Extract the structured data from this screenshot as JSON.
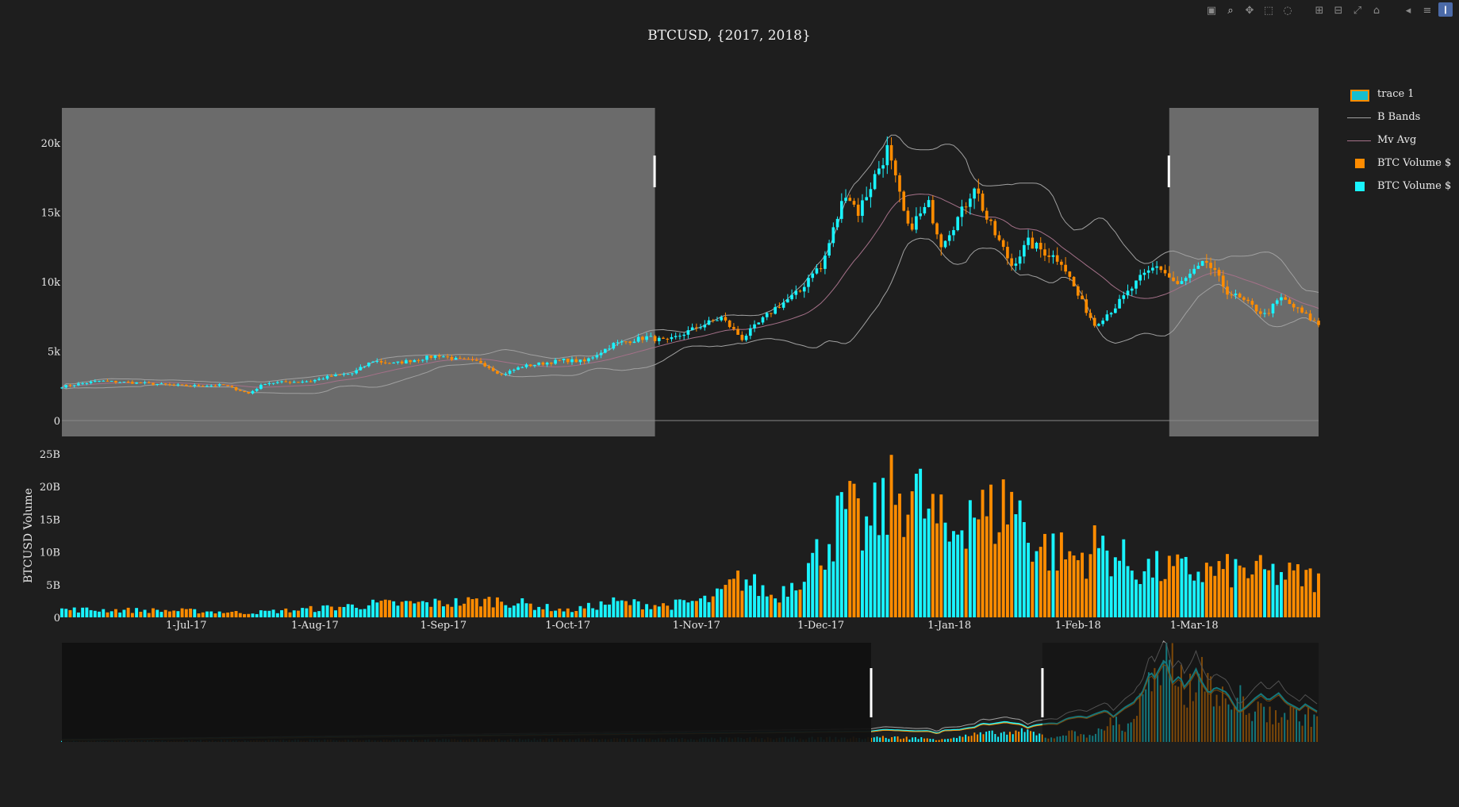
{
  "title": "BTCUSD, {2017, 2018}",
  "modebar": {
    "icons": [
      "camera-icon",
      "zoom-icon",
      "pan-icon",
      "box-select-icon",
      "lasso-icon",
      "zoom-in-icon",
      "zoom-out-icon",
      "autoscale-icon",
      "reset-axes-icon",
      "spike-lines-icon",
      "compare-hover-icon",
      "plotly-logo-icon"
    ]
  },
  "legend": {
    "items": [
      {
        "label": "trace 1",
        "kind": "candle"
      },
      {
        "label": "B Bands",
        "kind": "line-gray"
      },
      {
        "label": "Mv Avg",
        "kind": "line-pink"
      },
      {
        "label": "BTC Volume $",
        "kind": "square-orange"
      },
      {
        "label": "BTC Volume $",
        "kind": "square-cyan"
      }
    ]
  },
  "colors": {
    "background": "#1e1e1e",
    "increasing": "#17becf",
    "increasing_fill": "#19f4ff",
    "decreasing": "#ff8c00",
    "bands": "#a0a0a0",
    "moving_average": "#a57189",
    "shade": "#6b6b6b",
    "rangeslider_shade": "#111111"
  },
  "chart_data": [
    {
      "type": "candlestick",
      "name": "trace 1",
      "y_ticks": [
        "0",
        "5k",
        "10k",
        "15k",
        "20k"
      ],
      "y_tick_values": [
        0,
        5000,
        10000,
        15000,
        20000
      ],
      "ylim": [
        0,
        22500
      ],
      "x_start": "2017-06-01",
      "x_end": "2018-03-31",
      "shaded_ranges": [
        [
          "2017-06-01",
          "2017-10-22"
        ],
        [
          "2018-02-23",
          "2018-03-31"
        ]
      ],
      "close_anchors": [
        [
          "2017-06-01",
          2450
        ],
        [
          "2017-06-10",
          2850
        ],
        [
          "2017-06-20",
          2700
        ],
        [
          "2017-07-01",
          2500
        ],
        [
          "2017-07-10",
          2550
        ],
        [
          "2017-07-16",
          1950
        ],
        [
          "2017-07-20",
          2700
        ],
        [
          "2017-07-31",
          2850
        ],
        [
          "2017-08-05",
          3200
        ],
        [
          "2017-08-10",
          3400
        ],
        [
          "2017-08-15",
          4300
        ],
        [
          "2017-08-20",
          4100
        ],
        [
          "2017-08-31",
          4700
        ],
        [
          "2017-09-04",
          4400
        ],
        [
          "2017-09-10",
          4200
        ],
        [
          "2017-09-15",
          3300
        ],
        [
          "2017-09-20",
          3900
        ],
        [
          "2017-09-30",
          4350
        ],
        [
          "2017-10-05",
          4250
        ],
        [
          "2017-10-12",
          5500
        ],
        [
          "2017-10-20",
          6000
        ],
        [
          "2017-10-25",
          5700
        ],
        [
          "2017-11-01",
          6700
        ],
        [
          "2017-11-07",
          7400
        ],
        [
          "2017-11-12",
          5900
        ],
        [
          "2017-11-20",
          8100
        ],
        [
          "2017-11-26",
          9300
        ],
        [
          "2017-11-29",
          10800
        ],
        [
          "2017-12-01",
          10900
        ],
        [
          "2017-12-07",
          16500
        ],
        [
          "2017-12-10",
          15000
        ],
        [
          "2017-12-17",
          19500
        ],
        [
          "2017-12-22",
          13800
        ],
        [
          "2017-12-27",
          15500
        ],
        [
          "2017-12-30",
          12800
        ],
        [
          "2018-01-04",
          15000
        ],
        [
          "2018-01-07",
          17000
        ],
        [
          "2018-01-10",
          14500
        ],
        [
          "2018-01-16",
          11200
        ],
        [
          "2018-01-20",
          12800
        ],
        [
          "2018-01-28",
          11500
        ],
        [
          "2018-02-01",
          9000
        ],
        [
          "2018-02-05",
          6900
        ],
        [
          "2018-02-10",
          8200
        ],
        [
          "2018-02-16",
          10200
        ],
        [
          "2018-02-20",
          11200
        ],
        [
          "2018-02-25",
          9700
        ],
        [
          "2018-03-04",
          11400
        ],
        [
          "2018-03-09",
          9300
        ],
        [
          "2018-03-15",
          8200
        ],
        [
          "2018-03-18",
          7600
        ],
        [
          "2018-03-22",
          8800
        ],
        [
          "2018-03-31",
          6900
        ]
      ]
    },
    {
      "type": "bar",
      "name": "BTC Volume $",
      "ylabel": "BTCUSD Volume",
      "y_ticks": [
        "0",
        "5B",
        "10B",
        "15B",
        "20B",
        "25B"
      ],
      "y_tick_values": [
        0,
        5,
        10,
        15,
        20,
        25
      ],
      "ylim": [
        0,
        25
      ],
      "volume_anchors_billions": [
        [
          "2017-06-01",
          1.2
        ],
        [
          "2017-07-01",
          1.0
        ],
        [
          "2017-07-16",
          0.7
        ],
        [
          "2017-08-01",
          1.3
        ],
        [
          "2017-08-15",
          2.0
        ],
        [
          "2017-09-01",
          2.2
        ],
        [
          "2017-09-15",
          2.6
        ],
        [
          "2017-10-01",
          1.0
        ],
        [
          "2017-10-12",
          2.3
        ],
        [
          "2017-10-25",
          1.8
        ],
        [
          "2017-11-05",
          2.8
        ],
        [
          "2017-11-12",
          6.0
        ],
        [
          "2017-11-20",
          3.0
        ],
        [
          "2017-11-29",
          8.5
        ],
        [
          "2017-12-07",
          16.0
        ],
        [
          "2017-12-12",
          13.0
        ],
        [
          "2017-12-17",
          17.5
        ],
        [
          "2017-12-22",
          20.0
        ],
        [
          "2018-01-01",
          12.0
        ],
        [
          "2018-01-06",
          18.0
        ],
        [
          "2018-01-10",
          15.0
        ],
        [
          "2018-01-16",
          18.0
        ],
        [
          "2018-01-22",
          11.0
        ],
        [
          "2018-02-01",
          9.0
        ],
        [
          "2018-02-06",
          11.0
        ],
        [
          "2018-02-15",
          7.5
        ],
        [
          "2018-03-01",
          7.0
        ],
        [
          "2018-03-15",
          7.0
        ],
        [
          "2018-03-31",
          5.8
        ]
      ]
    },
    {
      "type": "x-axis",
      "tick_labels": [
        "1-Jul-17",
        "1-Aug-17",
        "1-Sep-17",
        "1-Oct-17",
        "1-Nov-17",
        "1-Dec-17",
        "1-Jan-18",
        "1-Feb-18",
        "1-Mar-18"
      ],
      "tick_dates": [
        "2017-07-01",
        "2017-08-01",
        "2017-09-01",
        "2017-10-01",
        "2017-11-01",
        "2017-12-01",
        "2018-01-01",
        "2018-02-01",
        "2018-03-01"
      ]
    },
    {
      "type": "rangeslider",
      "full_start": "2015-12-01",
      "full_end": "2018-03-31",
      "selected_range": [
        "2017-06-01",
        "2017-09-25"
      ]
    }
  ]
}
